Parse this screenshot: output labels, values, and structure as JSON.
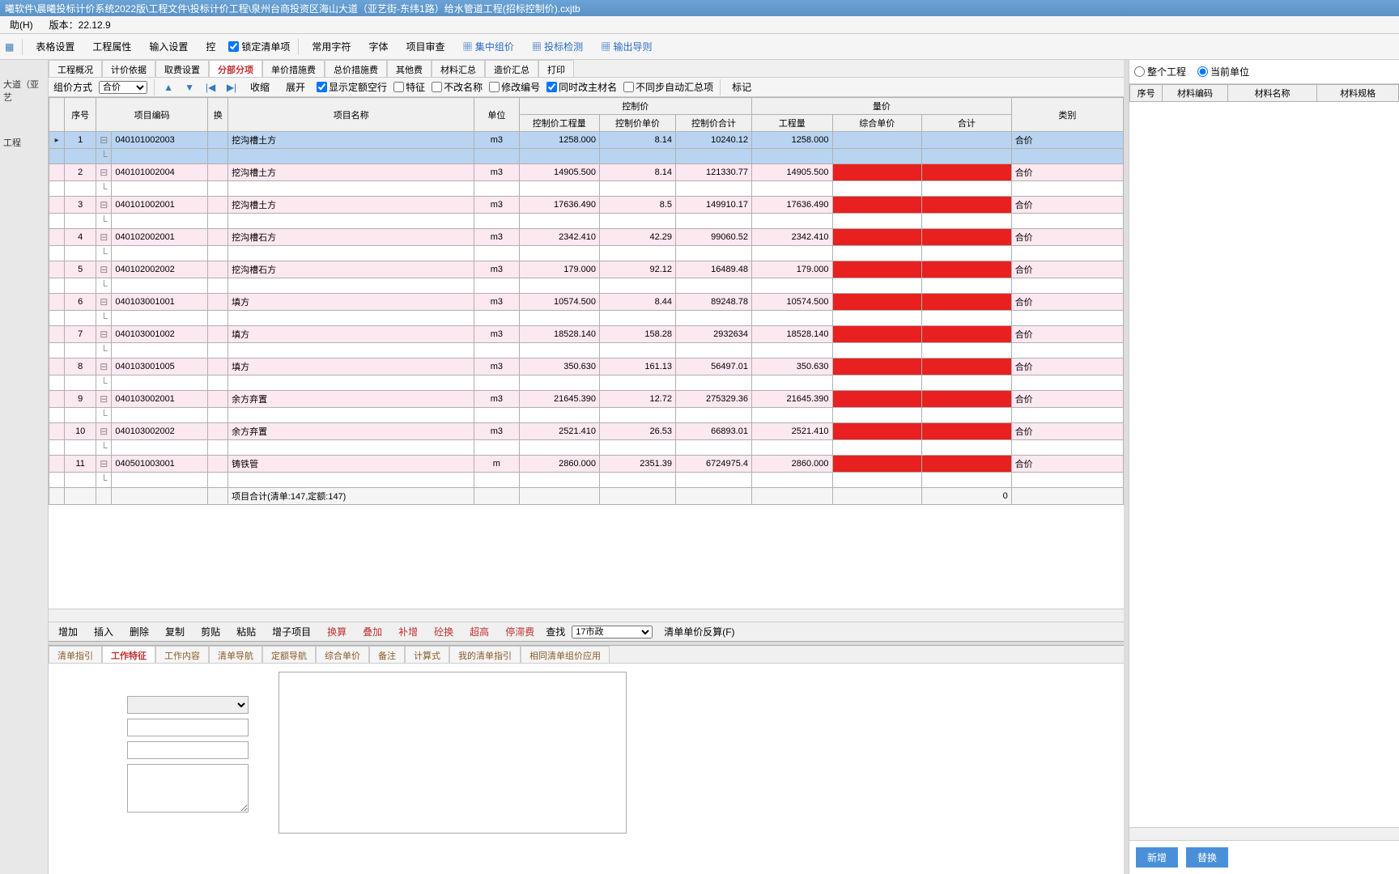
{
  "title_bar": "曦软件\\晨曦投标计价系统2022版\\工程文件\\投标计价工程\\泉州台商投资区海山大道（亚艺街-东纬1路）给水管道工程(招标控制价).cxjtb",
  "menu": {
    "help": "助(H)",
    "version": "版本：22.12.9"
  },
  "toolbar": {
    "table_settings": "表格设置",
    "proj_props": "工程属性",
    "input_settings": "输入设置",
    "ctrl": "控",
    "lock": "锁定清单项",
    "common_chars": "常用字符",
    "font": "字体",
    "proj_review": "项目审查",
    "group_price": "集中组价",
    "bid_check": "投标检测",
    "export": "输出导则"
  },
  "sidebar": {
    "line1": "大道（亚艺",
    "line2": "工程"
  },
  "main_tabs": [
    "工程概况",
    "计价依据",
    "取费设置",
    "分部分项",
    "单价措施费",
    "总价措施费",
    "其他费",
    "材料汇总",
    "造价汇总",
    "打印"
  ],
  "main_tab_active": 3,
  "filters": {
    "price_mode": "组价方式",
    "price_mode_val": "合价",
    "collapse": "收缩",
    "expand": "展开",
    "cb1": "显示定额空行",
    "cb2": "特征",
    "cb3": "不改名称",
    "cb4": "修改编号",
    "cb5": "同时改主材名",
    "cb6": "不同步自动汇总项",
    "mark": "标记"
  },
  "grid": {
    "headers": {
      "seq": "序号",
      "code": "项目编码",
      "swap": "换",
      "name": "项目名称",
      "unit": "单位",
      "ctrl_grp": "控制价",
      "ctrl_qty": "控制价工程量",
      "ctrl_unit": "控制价单价",
      "ctrl_total": "控制价合计",
      "qty_grp": "量价",
      "qty": "工程量",
      "comp_unit": "综合单价",
      "total": "合计",
      "category": "类别"
    },
    "rows": [
      {
        "seq": "1",
        "code": "040101002003",
        "name": "挖沟槽土方",
        "unit": "m3",
        "cq": "1258.000",
        "cu": "8.14",
        "ct": "10240.12",
        "q": "1258.000",
        "cat": "合价",
        "sel": true
      },
      {
        "seq": "2",
        "code": "040101002004",
        "name": "挖沟槽土方",
        "unit": "m3",
        "cq": "14905.500",
        "cu": "8.14",
        "ct": "121330.77",
        "q": "14905.500",
        "cat": "合价",
        "red": true
      },
      {
        "seq": "3",
        "code": "040101002001",
        "name": "挖沟槽土方",
        "unit": "m3",
        "cq": "17636.490",
        "cu": "8.5",
        "ct": "149910.17",
        "q": "17636.490",
        "cat": "合价",
        "red": true
      },
      {
        "seq": "4",
        "code": "040102002001",
        "name": "挖沟槽石方",
        "unit": "m3",
        "cq": "2342.410",
        "cu": "42.29",
        "ct": "99060.52",
        "q": "2342.410",
        "cat": "合价",
        "red": true
      },
      {
        "seq": "5",
        "code": "040102002002",
        "name": "挖沟槽石方",
        "unit": "m3",
        "cq": "179.000",
        "cu": "92.12",
        "ct": "16489.48",
        "q": "179.000",
        "cat": "合价",
        "red": true
      },
      {
        "seq": "6",
        "code": "040103001001",
        "name": "填方",
        "unit": "m3",
        "cq": "10574.500",
        "cu": "8.44",
        "ct": "89248.78",
        "q": "10574.500",
        "cat": "合价",
        "red": true
      },
      {
        "seq": "7",
        "code": "040103001002",
        "name": "填方",
        "unit": "m3",
        "cq": "18528.140",
        "cu": "158.28",
        "ct": "2932634",
        "q": "18528.140",
        "cat": "合价",
        "red": true
      },
      {
        "seq": "8",
        "code": "040103001005",
        "name": "填方",
        "unit": "m3",
        "cq": "350.630",
        "cu": "161.13",
        "ct": "56497.01",
        "q": "350.630",
        "cat": "合价",
        "red": true
      },
      {
        "seq": "9",
        "code": "040103002001",
        "name": "余方弃置",
        "unit": "m3",
        "cq": "21645.390",
        "cu": "12.72",
        "ct": "275329.36",
        "q": "21645.390",
        "cat": "合价",
        "red": true
      },
      {
        "seq": "10",
        "code": "040103002002",
        "name": "余方弃置",
        "unit": "m3",
        "cq": "2521.410",
        "cu": "26.53",
        "ct": "66893.01",
        "q": "2521.410",
        "cat": "合价",
        "red": true
      },
      {
        "seq": "11",
        "code": "040501003001",
        "name": "铸铁管",
        "unit": "m",
        "cq": "2860.000",
        "cu": "2351.39",
        "ct": "6724975.4",
        "q": "2860.000",
        "cat": "合价",
        "red": true
      }
    ],
    "total_label": "项目合计(清单:147,定额:147)",
    "total_val": "0"
  },
  "actions": {
    "add": "增加",
    "insert": "插入",
    "delete": "删除",
    "copy": "复制",
    "cut": "剪贴",
    "paste": "粘贴",
    "sub": "增子项目",
    "swap": "换算",
    "stack": "叠加",
    "supp": "补增",
    "repl": "砼换",
    "over": "超高",
    "stop": "停滞费",
    "find": "查找",
    "find_val": "17市政",
    "reverse": "清单单价反算(F)"
  },
  "bottom_tabs": [
    "清单指引",
    "工作特征",
    "工作内容",
    "清单导航",
    "定额导航",
    "综合单价",
    "备注",
    "计算式",
    "我的清单指引",
    "相同清单组价应用"
  ],
  "bottom_tab_active": 1,
  "right": {
    "whole": "整个工程",
    "current": "当前单位",
    "headers": {
      "seq": "序号",
      "code": "材料编码",
      "name": "材料名称",
      "spec": "材料规格"
    },
    "btn_new": "新增",
    "btn_repl": "替换"
  }
}
